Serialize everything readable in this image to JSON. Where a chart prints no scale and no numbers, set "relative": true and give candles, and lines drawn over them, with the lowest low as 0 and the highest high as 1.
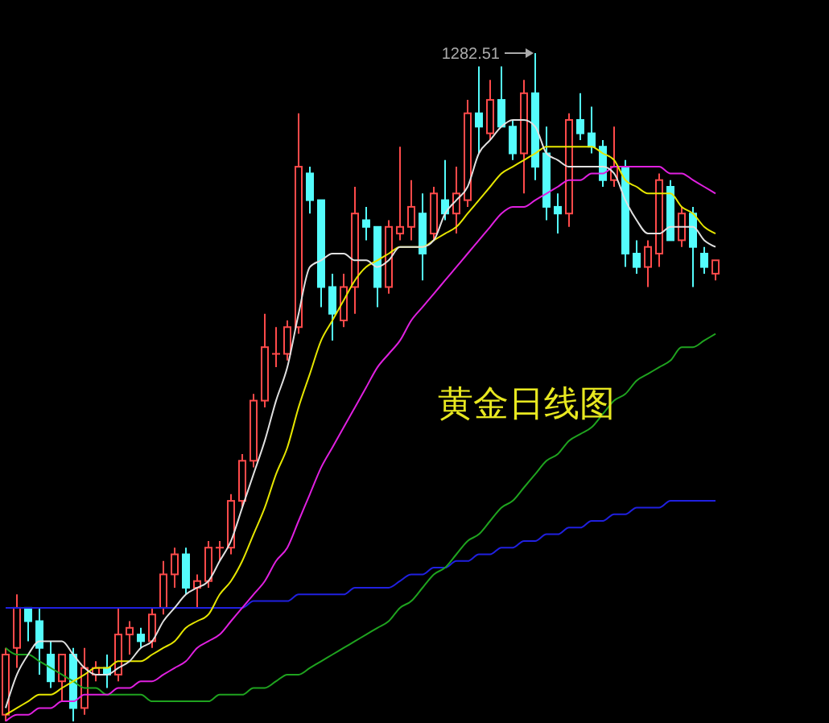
{
  "chart_data": {
    "type": "candlestick",
    "title": "黄金日线图",
    "relative": true,
    "categories": [
      null,
      null,
      null,
      null,
      null,
      null,
      null,
      null,
      null,
      null,
      null,
      null,
      null,
      null,
      null,
      null,
      null,
      null,
      null,
      null,
      null,
      null,
      null,
      null,
      null,
      null,
      null,
      null,
      null,
      null,
      null,
      null,
      null,
      null,
      null,
      null,
      null,
      null,
      null,
      null,
      null,
      null,
      null,
      null,
      null,
      null,
      null,
      null,
      null,
      null,
      null,
      null,
      null,
      null,
      null,
      null,
      null,
      null,
      null,
      null,
      null,
      null,
      null,
      null
    ],
    "ohlc": [
      [
        0.01,
        0.11,
        0.0,
        0.1
      ],
      [
        0.11,
        0.19,
        0.08,
        0.17
      ],
      [
        0.17,
        0.17,
        0.12,
        0.15
      ],
      [
        0.15,
        0.17,
        0.07,
        0.11
      ],
      [
        0.1,
        0.12,
        0.05,
        0.06
      ],
      [
        0.06,
        0.1,
        0.03,
        0.1
      ],
      [
        0.1,
        0.11,
        0.0,
        0.02
      ],
      [
        0.02,
        0.11,
        0.01,
        0.08
      ],
      [
        0.07,
        0.09,
        0.06,
        0.08
      ],
      [
        0.08,
        0.1,
        0.05,
        0.07
      ],
      [
        0.07,
        0.17,
        0.06,
        0.13
      ],
      [
        0.13,
        0.15,
        0.1,
        0.14
      ],
      [
        0.13,
        0.14,
        0.11,
        0.12
      ],
      [
        0.12,
        0.17,
        0.11,
        0.16
      ],
      [
        0.17,
        0.24,
        0.16,
        0.22
      ],
      [
        0.22,
        0.26,
        0.2,
        0.25
      ],
      [
        0.25,
        0.26,
        0.19,
        0.2
      ],
      [
        0.2,
        0.22,
        0.17,
        0.21
      ],
      [
        0.21,
        0.27,
        0.2,
        0.26
      ],
      [
        0.26,
        0.27,
        0.24,
        0.26
      ],
      [
        0.26,
        0.34,
        0.25,
        0.33
      ],
      [
        0.33,
        0.4,
        0.32,
        0.39
      ],
      [
        0.39,
        0.49,
        0.38,
        0.48
      ],
      [
        0.48,
        0.61,
        0.47,
        0.56
      ],
      [
        0.55,
        0.59,
        0.53,
        0.55
      ],
      [
        0.55,
        0.6,
        0.54,
        0.59
      ],
      [
        0.59,
        0.91,
        0.58,
        0.83
      ],
      [
        0.82,
        0.83,
        0.76,
        0.78
      ],
      [
        0.78,
        0.78,
        0.62,
        0.65
      ],
      [
        0.65,
        0.67,
        0.57,
        0.61
      ],
      [
        0.6,
        0.67,
        0.59,
        0.65
      ],
      [
        0.65,
        0.8,
        0.61,
        0.76
      ],
      [
        0.75,
        0.77,
        0.72,
        0.74
      ],
      [
        0.74,
        0.74,
        0.62,
        0.65
      ],
      [
        0.65,
        0.75,
        0.64,
        0.74
      ],
      [
        0.73,
        0.86,
        0.72,
        0.74
      ],
      [
        0.74,
        0.81,
        0.72,
        0.77
      ],
      [
        0.76,
        0.79,
        0.66,
        0.7
      ],
      [
        0.73,
        0.8,
        0.72,
        0.79
      ],
      [
        0.78,
        0.84,
        0.75,
        0.76
      ],
      [
        0.76,
        0.83,
        0.73,
        0.79
      ],
      [
        0.78,
        0.93,
        0.77,
        0.91
      ],
      [
        0.91,
        0.98,
        0.85,
        0.89
      ],
      [
        0.88,
        0.96,
        0.87,
        0.93
      ],
      [
        0.93,
        0.98,
        0.89,
        0.89
      ],
      [
        0.89,
        0.9,
        0.84,
        0.85
      ],
      [
        0.85,
        0.96,
        0.79,
        0.94
      ],
      [
        0.94,
        1.0,
        0.81,
        0.83
      ],
      [
        0.85,
        0.89,
        0.75,
        0.77
      ],
      [
        0.77,
        0.79,
        0.73,
        0.76
      ],
      [
        0.76,
        0.91,
        0.74,
        0.9
      ],
      [
        0.9,
        0.94,
        0.87,
        0.88
      ],
      [
        0.88,
        0.92,
        0.85,
        0.86
      ],
      [
        0.86,
        0.87,
        0.8,
        0.81
      ],
      [
        0.81,
        0.89,
        0.8,
        0.83
      ],
      [
        0.83,
        0.84,
        0.68,
        0.7
      ],
      [
        0.7,
        0.72,
        0.67,
        0.68
      ],
      [
        0.68,
        0.72,
        0.65,
        0.71
      ],
      [
        0.7,
        0.82,
        0.68,
        0.81
      ],
      [
        0.8,
        0.81,
        0.72,
        0.72
      ],
      [
        0.72,
        0.77,
        0.71,
        0.76
      ],
      [
        0.76,
        0.77,
        0.65,
        0.71
      ],
      [
        0.7,
        0.71,
        0.67,
        0.68
      ],
      [
        0.67,
        0.69,
        0.66,
        0.69
      ]
    ],
    "colors": [
      "#ff4a4a",
      "#ff4a4a",
      "#54fcfc",
      "#54fcfc",
      "#54fcfc",
      "#ff4a4a",
      "#54fcfc",
      "#ff4a4a",
      "#ff4a4a",
      "#54fcfc",
      "#ff4a4a",
      "#ff4a4a",
      "#54fcfc",
      "#ff4a4a",
      "#ff4a4a",
      "#ff4a4a",
      "#54fcfc",
      "#ff4a4a",
      "#ff4a4a",
      "#ff4a4a",
      "#ff4a4a",
      "#ff4a4a",
      "#ff4a4a",
      "#ff4a4a",
      "#ff4a4a",
      "#ff4a4a",
      "#ff4a4a",
      "#54fcfc",
      "#54fcfc",
      "#54fcfc",
      "#ff4a4a",
      "#ff4a4a",
      "#54fcfc",
      "#54fcfc",
      "#ff4a4a",
      "#ff4a4a",
      "#ff4a4a",
      "#54fcfc",
      "#ff4a4a",
      "#54fcfc",
      "#ff4a4a",
      "#ff4a4a",
      "#54fcfc",
      "#ff4a4a",
      "#54fcfc",
      "#54fcfc",
      "#ff4a4a",
      "#54fcfc",
      "#54fcfc",
      "#54fcfc",
      "#ff4a4a",
      "#54fcfc",
      "#54fcfc",
      "#54fcfc",
      "#ff4a4a",
      "#54fcfc",
      "#54fcfc",
      "#ff4a4a",
      "#ff4a4a",
      "#54fcfc",
      "#ff4a4a",
      "#54fcfc",
      "#54fcfc",
      "#ff4a4a"
    ],
    "series": [
      {
        "type": "line",
        "color": "#2020e0",
        "values": [
          0.17,
          0.17,
          0.17,
          0.17,
          0.17,
          0.17,
          0.17,
          0.17,
          0.17,
          0.17,
          0.17,
          0.17,
          0.17,
          0.17,
          0.17,
          0.17,
          0.17,
          0.17,
          0.17,
          0.17,
          0.17,
          0.17,
          0.18,
          0.18,
          0.18,
          0.18,
          0.19,
          0.19,
          0.19,
          0.19,
          0.19,
          0.2,
          0.2,
          0.2,
          0.2,
          0.21,
          0.22,
          0.22,
          0.23,
          0.23,
          0.24,
          0.24,
          0.25,
          0.25,
          0.26,
          0.26,
          0.27,
          0.27,
          0.28,
          0.28,
          0.29,
          0.29,
          0.3,
          0.3,
          0.31,
          0.31,
          0.32,
          0.32,
          0.32,
          0.33,
          0.33,
          0.33,
          0.33,
          0.33
        ]
      },
      {
        "type": "line",
        "color": "#1fa31f",
        "values": [
          0.11,
          0.1,
          0.1,
          0.09,
          0.08,
          0.07,
          0.06,
          0.05,
          0.05,
          0.04,
          0.04,
          0.04,
          0.04,
          0.03,
          0.03,
          0.03,
          0.03,
          0.03,
          0.03,
          0.04,
          0.04,
          0.04,
          0.05,
          0.05,
          0.06,
          0.07,
          0.07,
          0.08,
          0.09,
          0.1,
          0.11,
          0.12,
          0.13,
          0.14,
          0.15,
          0.17,
          0.18,
          0.2,
          0.22,
          0.23,
          0.25,
          0.27,
          0.28,
          0.3,
          0.32,
          0.33,
          0.35,
          0.37,
          0.39,
          0.4,
          0.42,
          0.43,
          0.44,
          0.46,
          0.48,
          0.49,
          0.51,
          0.52,
          0.53,
          0.54,
          0.56,
          0.56,
          0.57,
          0.58
        ]
      },
      {
        "type": "line",
        "color": "#e020e0",
        "values": [
          0.0,
          0.01,
          0.01,
          0.02,
          0.02,
          0.03,
          0.03,
          0.04,
          0.04,
          0.04,
          0.05,
          0.05,
          0.06,
          0.06,
          0.07,
          0.08,
          0.09,
          0.11,
          0.12,
          0.13,
          0.15,
          0.17,
          0.19,
          0.21,
          0.24,
          0.26,
          0.3,
          0.34,
          0.38,
          0.41,
          0.44,
          0.47,
          0.5,
          0.53,
          0.55,
          0.57,
          0.6,
          0.62,
          0.64,
          0.66,
          0.68,
          0.7,
          0.72,
          0.74,
          0.76,
          0.77,
          0.77,
          0.78,
          0.79,
          0.8,
          0.81,
          0.81,
          0.82,
          0.82,
          0.83,
          0.83,
          0.83,
          0.83,
          0.83,
          0.82,
          0.82,
          0.81,
          0.8,
          0.79
        ]
      },
      {
        "type": "line",
        "color": "#e6e600",
        "values": [
          0.01,
          0.02,
          0.03,
          0.04,
          0.04,
          0.05,
          0.06,
          0.07,
          0.08,
          0.08,
          0.09,
          0.09,
          0.09,
          0.1,
          0.11,
          0.12,
          0.14,
          0.15,
          0.16,
          0.19,
          0.21,
          0.24,
          0.28,
          0.32,
          0.37,
          0.41,
          0.47,
          0.52,
          0.57,
          0.6,
          0.63,
          0.66,
          0.68,
          0.69,
          0.7,
          0.71,
          0.71,
          0.71,
          0.72,
          0.73,
          0.74,
          0.76,
          0.78,
          0.8,
          0.82,
          0.83,
          0.84,
          0.85,
          0.86,
          0.86,
          0.86,
          0.86,
          0.86,
          0.85,
          0.84,
          0.81,
          0.8,
          0.79,
          0.79,
          0.79,
          0.77,
          0.76,
          0.74,
          0.73
        ]
      },
      {
        "type": "line",
        "color": "#e0e0e0",
        "values": [
          0.02,
          0.07,
          0.1,
          0.12,
          0.12,
          0.12,
          0.1,
          0.08,
          0.07,
          0.07,
          0.08,
          0.09,
          0.11,
          0.12,
          0.15,
          0.17,
          0.19,
          0.2,
          0.21,
          0.24,
          0.27,
          0.32,
          0.37,
          0.42,
          0.48,
          0.53,
          0.61,
          0.68,
          0.69,
          0.7,
          0.7,
          0.69,
          0.69,
          0.68,
          0.69,
          0.71,
          0.71,
          0.71,
          0.72,
          0.76,
          0.78,
          0.8,
          0.85,
          0.87,
          0.89,
          0.9,
          0.9,
          0.89,
          0.85,
          0.84,
          0.83,
          0.83,
          0.83,
          0.83,
          0.82,
          0.78,
          0.75,
          0.73,
          0.73,
          0.74,
          0.74,
          0.74,
          0.72,
          0.71
        ]
      }
    ],
    "annotations": [
      "1282.51"
    ]
  }
}
